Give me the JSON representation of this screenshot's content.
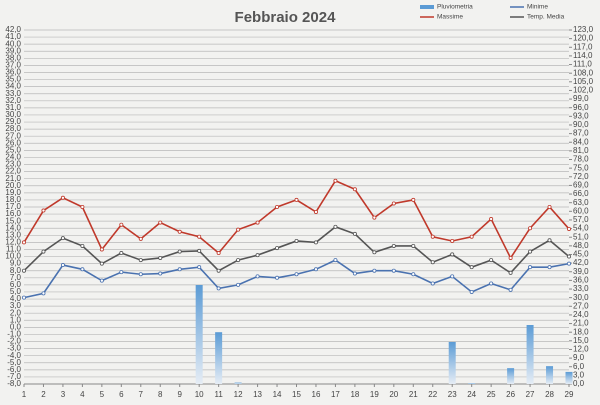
{
  "chart_data": {
    "type": "line",
    "title": "Febbraio 2024",
    "x": [
      1,
      2,
      3,
      4,
      5,
      6,
      7,
      8,
      9,
      10,
      11,
      12,
      13,
      14,
      15,
      16,
      17,
      18,
      19,
      20,
      21,
      22,
      23,
      24,
      25,
      26,
      27,
      28,
      29
    ],
    "xlim": [
      1,
      29
    ],
    "xticks": [
      1,
      2,
      3,
      4,
      5,
      6,
      7,
      8,
      9,
      10,
      11,
      12,
      13,
      14,
      15,
      16,
      17,
      18,
      19,
      20,
      21,
      22,
      23,
      24,
      25,
      26,
      27,
      28,
      29
    ],
    "ylim": [
      -8,
      42
    ],
    "yticks": [
      {
        "value": -8,
        "label": "-8,0"
      },
      {
        "value": -7,
        "label": "-7,0"
      },
      {
        "value": -6,
        "label": "-6,0"
      },
      {
        "value": -5,
        "label": "-5,0"
      },
      {
        "value": -4,
        "label": "-4,0"
      },
      {
        "value": -3,
        "label": "-3,0"
      },
      {
        "value": -2,
        "label": "-2,0"
      },
      {
        "value": -1,
        "label": "-1,0"
      },
      {
        "value": 0,
        "label": "0,0"
      },
      {
        "value": 1,
        "label": "1,0"
      },
      {
        "value": 2,
        "label": "2,0"
      },
      {
        "value": 3,
        "label": "3,0"
      },
      {
        "value": 4,
        "label": "4,0"
      },
      {
        "value": 5,
        "label": "5,0"
      },
      {
        "value": 6,
        "label": "6,0"
      },
      {
        "value": 7,
        "label": "7,0"
      },
      {
        "value": 8,
        "label": "8,0"
      },
      {
        "value": 9,
        "label": "9,0"
      },
      {
        "value": 10,
        "label": "10,0"
      },
      {
        "value": 11,
        "label": "11,0"
      },
      {
        "value": 12,
        "label": "12,0"
      },
      {
        "value": 13,
        "label": "13,0"
      },
      {
        "value": 14,
        "label": "14,0"
      },
      {
        "value": 15,
        "label": "15,0"
      },
      {
        "value": 16,
        "label": "16,0"
      },
      {
        "value": 17,
        "label": "17,0"
      },
      {
        "value": 18,
        "label": "18,0"
      },
      {
        "value": 19,
        "label": "19,0"
      },
      {
        "value": 20,
        "label": "20,0"
      },
      {
        "value": 21,
        "label": "21,0"
      },
      {
        "value": 22,
        "label": "22,0"
      },
      {
        "value": 23,
        "label": "23,0"
      },
      {
        "value": 24,
        "label": "24,0"
      },
      {
        "value": 25,
        "label": "25,0"
      },
      {
        "value": 26,
        "label": "26,0"
      },
      {
        "value": 27,
        "label": "27,0"
      },
      {
        "value": 28,
        "label": "28,0"
      },
      {
        "value": 29,
        "label": "29,0"
      },
      {
        "value": 30,
        "label": "30,0"
      },
      {
        "value": 31,
        "label": "31,0"
      },
      {
        "value": 32,
        "label": "32,0"
      },
      {
        "value": 33,
        "label": "33,0"
      },
      {
        "value": 34,
        "label": "34,0"
      },
      {
        "value": 35,
        "label": "35,0"
      },
      {
        "value": 36,
        "label": "36,0"
      },
      {
        "value": 37,
        "label": "37,0"
      },
      {
        "value": 38,
        "label": "38,0"
      },
      {
        "value": 39,
        "label": "39,0"
      },
      {
        "value": 40,
        "label": "40,0"
      },
      {
        "value": 41,
        "label": "41,0"
      },
      {
        "value": 42,
        "label": "42,0"
      }
    ],
    "y2lim": [
      0,
      123
    ],
    "y2ticks": [
      {
        "value": 0,
        "label": "0,0"
      },
      {
        "value": 3,
        "label": "3,0"
      },
      {
        "value": 6,
        "label": "6,0"
      },
      {
        "value": 9,
        "label": "9,0"
      },
      {
        "value": 12,
        "label": "12,0"
      },
      {
        "value": 15,
        "label": "15,0"
      },
      {
        "value": 18,
        "label": "18,0"
      },
      {
        "value": 21,
        "label": "21,0"
      },
      {
        "value": 24,
        "label": "24,0"
      },
      {
        "value": 27,
        "label": "27,0"
      },
      {
        "value": 30,
        "label": "30,0"
      },
      {
        "value": 33,
        "label": "33,0"
      },
      {
        "value": 36,
        "label": "36,0"
      },
      {
        "value": 39,
        "label": "39,0"
      },
      {
        "value": 42,
        "label": "42,0"
      },
      {
        "value": 45,
        "label": "45,0"
      },
      {
        "value": 48,
        "label": "48,0"
      },
      {
        "value": 51,
        "label": "51,0"
      },
      {
        "value": 54,
        "label": "54,0"
      },
      {
        "value": 57,
        "label": "57,0"
      },
      {
        "value": 60,
        "label": "60,0"
      },
      {
        "value": 63,
        "label": "63,0"
      },
      {
        "value": 66,
        "label": "66,0"
      },
      {
        "value": 69,
        "label": "69,0"
      },
      {
        "value": 72,
        "label": "72,0"
      },
      {
        "value": 75,
        "label": "75,0"
      },
      {
        "value": 78,
        "label": "78,0"
      },
      {
        "value": 81,
        "label": "81,0"
      },
      {
        "value": 84,
        "label": "84,0"
      },
      {
        "value": 87,
        "label": "87,0"
      },
      {
        "value": 90,
        "label": "90,0"
      },
      {
        "value": 93,
        "label": "93,0"
      },
      {
        "value": 96,
        "label": "96,0"
      },
      {
        "value": 99,
        "label": "99,0"
      },
      {
        "value": 102,
        "label": "102,0"
      },
      {
        "value": 105,
        "label": "105,0"
      },
      {
        "value": 108,
        "label": "108,0"
      },
      {
        "value": 111,
        "label": "111,0"
      },
      {
        "value": 114,
        "label": "114,0"
      },
      {
        "value": 117,
        "label": "117,0"
      },
      {
        "value": 120,
        "label": "120,0"
      },
      {
        "value": 123,
        "label": "123,0"
      }
    ],
    "grid": true,
    "series": [
      {
        "name": "Pluviometria",
        "kind": "bar",
        "axis": "y2",
        "color": "#5b9bd5",
        "values": [
          0,
          0,
          0,
          0,
          0,
          0,
          0,
          0,
          0,
          34.4,
          18,
          0.5,
          0,
          0,
          0,
          0,
          0,
          0,
          0,
          0,
          0,
          0,
          14.6,
          0.3,
          0,
          5.5,
          20.5,
          6.2,
          4.2
        ]
      },
      {
        "name": "Minime",
        "kind": "line",
        "color": "#4a72b0",
        "values": [
          4.2,
          4.8,
          8.8,
          8.2,
          6.6,
          7.8,
          7.5,
          7.6,
          8.2,
          8.5,
          5.5,
          6,
          7.2,
          7,
          7.5,
          8.2,
          9.5,
          7.6,
          8,
          8,
          7.5,
          6.2,
          7.2,
          5,
          6.2,
          5.3,
          8.5,
          8.5,
          9
        ]
      },
      {
        "name": "Massime",
        "kind": "line",
        "color": "#c0392b",
        "values": [
          12,
          16.5,
          18.3,
          17,
          11,
          14.5,
          12.5,
          14.8,
          13.5,
          12.8,
          10.5,
          13.8,
          14.8,
          17,
          18,
          16.3,
          20.7,
          19.5,
          15.5,
          17.5,
          18,
          12.8,
          12.2,
          12.8,
          15.3,
          9.8,
          14,
          17,
          13.9
        ]
      },
      {
        "name": "Temp. Media",
        "kind": "line",
        "color": "#555555",
        "values": [
          8,
          10.7,
          12.6,
          11.5,
          9,
          10.5,
          9.5,
          9.8,
          10.7,
          10.8,
          8,
          9.5,
          10.2,
          11.2,
          12.2,
          12,
          14.2,
          13.2,
          10.6,
          11.5,
          11.5,
          9.2,
          10.3,
          8.5,
          9.5,
          7.7,
          10.7,
          12.3,
          10
        ]
      }
    ]
  }
}
